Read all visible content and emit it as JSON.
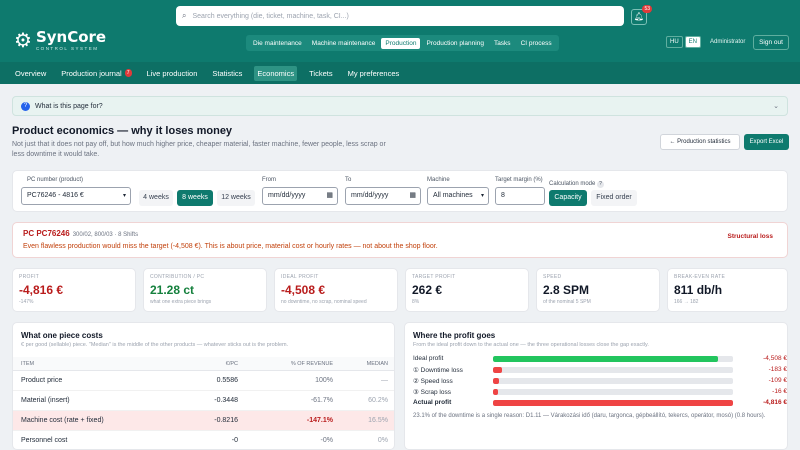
{
  "header": {
    "logo_name": "SynCore",
    "logo_sub": "CONTROL SYSTEM",
    "search_placeholder": "Search everything (die, ticket, machine, task, CI...)",
    "notif_count": "53",
    "modules": [
      "Die maintenance",
      "Machine maintenance",
      "Production",
      "Production planning",
      "Tasks",
      "CI process"
    ],
    "active_module": 2,
    "lang": [
      "HU",
      "EN"
    ],
    "user": "Administrator",
    "signout": "Sign out"
  },
  "subnav": {
    "items": [
      "Overview",
      "Production journal",
      "Live production",
      "Statistics",
      "Economics",
      "Tickets",
      "My preferences"
    ],
    "journal_count": "7",
    "active": 4
  },
  "help": {
    "label": "What is this page for?"
  },
  "page": {
    "title": "Product economics — why it loses money",
    "description": "Not just that it does not pay off, but how much higher price, cheaper material, faster machine, fewer people, less scrap or less downtime it would take.",
    "stats_button": "← Production statistics",
    "export_button": "Export Excel"
  },
  "filters": {
    "pc_label": "PC number (product)",
    "pc_value": "PC76246 - 4816 €",
    "weeks": [
      "4 weeks",
      "8 weeks",
      "12 weeks"
    ],
    "weeks_active": 1,
    "from_label": "From",
    "from_value": "mm/dd/yyyy",
    "to_label": "To",
    "to_value": "mm/dd/yyyy",
    "machine_label": "Machine",
    "machine_value": "All machines",
    "margin_label": "Target margin (%)",
    "margin_value": "8",
    "calc_label": "Calculation mode",
    "calc_modes": [
      "Capacity",
      "Fixed order"
    ],
    "calc_active": 0
  },
  "alert": {
    "pc": "PC PC76246",
    "meta": "300/02, 800/03 · 8 Shifts",
    "text": "Even flawless production would miss the target (-4,508 €). This is about price, material cost or hourly rates — not about the shop floor.",
    "tag": "Structural loss"
  },
  "kpis": [
    {
      "label": "PROFIT",
      "value": "-4,816 €",
      "sub": "-147%",
      "tone": "red"
    },
    {
      "label": "CONTRIBUTION / PC",
      "value": "21.28 ct",
      "sub": "what one extra piece brings",
      "tone": "green"
    },
    {
      "label": "IDEAL PROFIT",
      "value": "-4,508 €",
      "sub": "no downtime, no scrap, nominal speed",
      "tone": "red"
    },
    {
      "label": "TARGET PROFIT",
      "value": "262 €",
      "sub": "8%",
      "tone": "dark"
    },
    {
      "label": "SPEED",
      "value": "2.8 SPM",
      "sub": "of the nominal 5 SPM",
      "tone": "dark"
    },
    {
      "label": "BREAK-EVEN RATE",
      "value": "811 db/h",
      "sub": "166 → 182",
      "tone": "dark"
    }
  ],
  "costs": {
    "title": "What one piece costs",
    "subtitle": "€ per good (sellable) piece. \"Median\" is the middle of the other products — whatever sticks out is the problem.",
    "headers": [
      "ITEM",
      "€/PC",
      "% OF REVENUE",
      "MEDIAN"
    ],
    "rows": [
      {
        "item": "Product price",
        "eur": "0.5586",
        "pct": "100%",
        "median": "—",
        "hl": false
      },
      {
        "item": "Material (insert)",
        "eur": "-0.3448",
        "pct": "-61.7%",
        "median": "60.2%",
        "hl": false
      },
      {
        "item": "Machine cost (rate + fixed)",
        "eur": "-0.8216",
        "pct": "-147.1%",
        "median": "16.5%",
        "hl": true
      },
      {
        "item": "Personnel cost",
        "eur": "-0",
        "pct": "-0%",
        "median": "0%",
        "hl": false
      }
    ]
  },
  "profit": {
    "title": "Where the profit goes",
    "subtitle": "From the ideal profit down to the actual one — the three operational losses close the gap exactly.",
    "rows": [
      {
        "name": "Ideal profit",
        "value": "-4,508 €",
        "fill": 0.936,
        "color": "#22c55e"
      },
      {
        "name": "① Downtime loss",
        "value": "-183 €",
        "fill": 0.038,
        "color": "#ef4444"
      },
      {
        "name": "② Speed loss",
        "value": "-109 €",
        "fill": 0.023,
        "color": "#ef4444"
      },
      {
        "name": "③ Scrap loss",
        "value": "-16 €",
        "fill": 0.003,
        "color": "#ef4444"
      },
      {
        "name": "Actual profit",
        "value": "-4,816 €",
        "fill": 1.0,
        "color": "#ef4444"
      }
    ],
    "footnote": "23.1% of the downtime is a single reason: D1.11 — Várakozási idő (daru, targonca, gépbeállító, tekercs, operátor, mosó) (0.8 hours)."
  }
}
